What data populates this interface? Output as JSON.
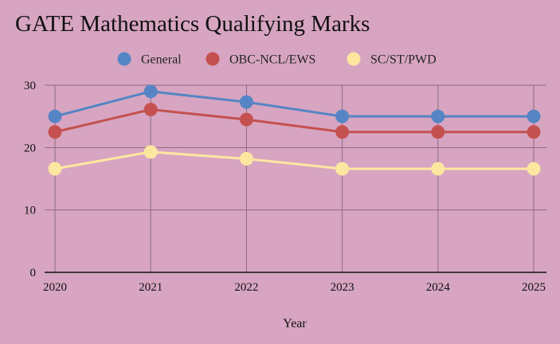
{
  "chart_data": {
    "type": "line",
    "title": "GATE Mathematics Qualifying Marks",
    "xlabel": "Year",
    "ylabel": "",
    "x": [
      "2020",
      "2021",
      "2022",
      "2023",
      "2024",
      "2025"
    ],
    "ylim": [
      0,
      30
    ],
    "yticks": [
      0,
      10,
      20,
      30
    ],
    "grid": true,
    "legend_position": "top",
    "series": [
      {
        "name": "General",
        "color": "#5585c4",
        "values": [
          25,
          29,
          27.3,
          25,
          25,
          25
        ]
      },
      {
        "name": "OBC-NCL/EWS",
        "color": "#c4514f",
        "values": [
          22.5,
          26.1,
          24.5,
          22.5,
          22.5,
          22.5
        ]
      },
      {
        "name": "SC/ST/PWD",
        "color": "#fde7a0",
        "values": [
          16.6,
          19.3,
          18.2,
          16.6,
          16.6,
          16.6
        ]
      }
    ]
  }
}
